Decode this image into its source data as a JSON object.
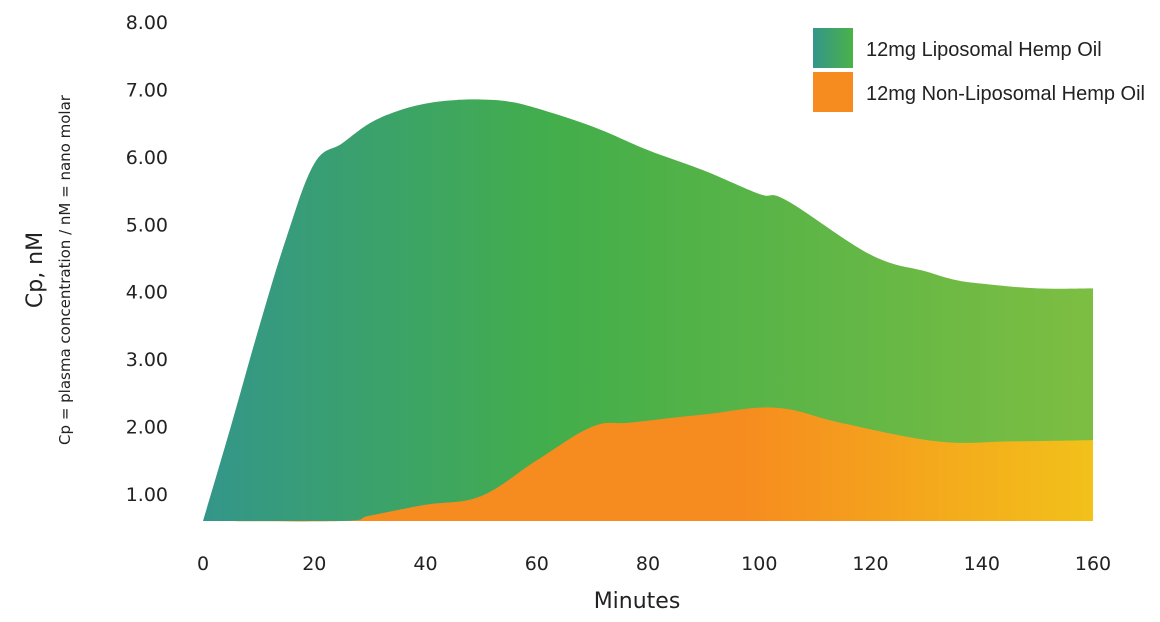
{
  "chart_data": {
    "type": "area",
    "title": "",
    "xlabel": "Minutes",
    "ylabel": "Cp, nM",
    "ylabel_sub": "Cp = plasma concentration / nM = nano molar",
    "xlim": [
      0,
      160
    ],
    "ylim": [
      0.6,
      8.0
    ],
    "x_ticks": [
      "0",
      "20",
      "40",
      "60",
      "80",
      "100",
      "120",
      "140",
      "160"
    ],
    "y_ticks": [
      "1.00",
      "2.00",
      "3.00",
      "4.00",
      "5.00",
      "6.00",
      "7.00",
      "8.00"
    ],
    "grid": false,
    "legend_position": "top-right",
    "series": [
      {
        "name": "12mg Liposomal Hemp Oil",
        "color": "#43AE4A",
        "gradient": [
          "#33968A",
          "#43AE4A",
          "#7DBE42"
        ],
        "x": [
          0,
          5,
          10,
          15,
          20,
          25,
          30,
          35,
          40,
          45,
          50,
          55,
          60,
          70,
          80,
          90,
          100,
          105,
          120,
          130,
          135,
          140,
          150,
          160
        ],
        "y": [
          0.6,
          2.0,
          3.45,
          4.8,
          5.9,
          6.2,
          6.5,
          6.68,
          6.79,
          6.84,
          6.85,
          6.82,
          6.72,
          6.45,
          6.1,
          5.8,
          5.45,
          5.35,
          4.55,
          4.3,
          4.18,
          4.12,
          4.05,
          4.05
        ]
      },
      {
        "name": "12mg Non-Liposomal Hemp Oil",
        "color": "#F68B1F",
        "gradient": [
          "#F68B1F",
          "#F68B1F",
          "#F2C11A"
        ],
        "x": [
          0,
          25,
          30,
          40,
          50,
          60,
          70,
          77,
          90,
          103,
          115,
          132,
          145,
          160
        ],
        "y": [
          0.6,
          0.6,
          0.68,
          0.84,
          0.97,
          1.5,
          2.0,
          2.06,
          2.18,
          2.28,
          2.05,
          1.78,
          1.78,
          1.8
        ]
      }
    ]
  }
}
